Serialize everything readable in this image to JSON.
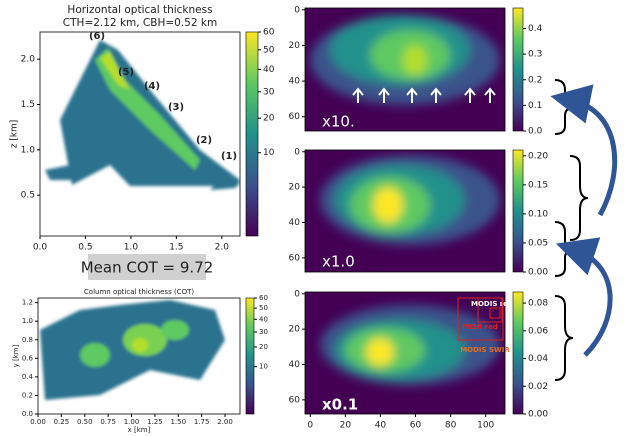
{
  "chart_data": [
    {
      "type": "heatmap",
      "title": "Horizontal optical thickness",
      "subtitle": "CTH=2.12 km, CBH=0.52 km",
      "ylabel": "z [km]",
      "xlim": [
        0,
        2.2
      ],
      "ylim": [
        0.05,
        2.3
      ],
      "xticks": [
        {
          "value": 0,
          "label": "0.0"
        },
        0.5,
        {
          "value": 1,
          "label": "1.0"
        },
        1.5,
        {
          "value": 2,
          "label": "2.0"
        }
      ],
      "yticks": [
        0.5,
        {
          "value": 1,
          "label": "1.0"
        },
        1.5,
        {
          "value": 2,
          "label": "2.0"
        }
      ],
      "colorbar": {
        "lim": [
          0,
          60
        ],
        "ticks": [
          10,
          20,
          30,
          40,
          50,
          60
        ],
        "scale": "sqrt"
      },
      "annotations": [
        "(6)",
        "(5)",
        "(4)",
        "(3)",
        "(2)",
        "(1)"
      ],
      "box_label": "Mean COT = 9.72"
    },
    {
      "type": "heatmap",
      "title": "Column optical thickness (COT)",
      "xlabel": "x [km]",
      "ylabel": "y [km]",
      "xlim": [
        0,
        2.16
      ],
      "ylim": [
        0,
        1.25
      ],
      "xticks": [
        {
          "value": 0,
          "label": "0.00"
        },
        0.25,
        {
          "value": 0.5,
          "label": "0.50"
        },
        0.75,
        {
          "value": 1,
          "label": "1.00"
        },
        1.25,
        {
          "value": 1.5,
          "label": "1.50"
        },
        1.75,
        {
          "value": 2,
          "label": "2.00"
        }
      ],
      "yticks": [
        {
          "value": 0,
          "label": "0.0"
        },
        0.2,
        0.4,
        0.6,
        0.8,
        {
          "value": 1,
          "label": "1.0"
        },
        1.2
      ],
      "colorbar": {
        "lim": [
          0,
          60
        ],
        "ticks": [
          10,
          20,
          30,
          40,
          50,
          60
        ],
        "scale": "sqrt"
      }
    },
    {
      "type": "heatmap",
      "xlim": [
        -3,
        111
      ],
      "ylim": [
        68,
        -1
      ],
      "xticks": [],
      "yticks": [
        0,
        20,
        40,
        60
      ],
      "colorbar": {
        "lim": [
          0,
          0.48
        ],
        "ticks": [
          {
            "value": 0,
            "label": "0.0"
          },
          0.1,
          0.2,
          0.3,
          0.4
        ],
        "scale": "linear"
      },
      "annotations": [
        "x10."
      ]
    },
    {
      "type": "heatmap",
      "xlim": [
        -3,
        111
      ],
      "ylim": [
        68,
        -1
      ],
      "xticks": [],
      "yticks": [
        0,
        20,
        40,
        60
      ],
      "colorbar": {
        "lim": [
          0,
          0.21
        ],
        "ticks": [
          {
            "value": 0,
            "label": "0.00"
          },
          0.05,
          {
            "value": 0.1,
            "label": "0.10"
          },
          0.15,
          {
            "value": 0.2,
            "label": "0.20"
          }
        ],
        "scale": "linear"
      },
      "annotations": [
        "x1.0"
      ]
    },
    {
      "type": "heatmap",
      "xlim": [
        -3,
        111
      ],
      "ylim": [
        68,
        -1
      ],
      "xticks": [
        0,
        20,
        40,
        60,
        80,
        100
      ],
      "yticks": [
        0,
        20,
        40,
        60
      ],
      "colorbar": {
        "lim": [
          0,
          0.088
        ],
        "ticks": [
          {
            "value": 0,
            "label": "0.00"
          },
          0.02,
          0.04,
          0.06,
          0.08
        ],
        "scale": "linear"
      },
      "annotations": [
        "x0.1",
        "MODIS red",
        "MISR red",
        "MODIS SWIR"
      ]
    }
  ]
}
